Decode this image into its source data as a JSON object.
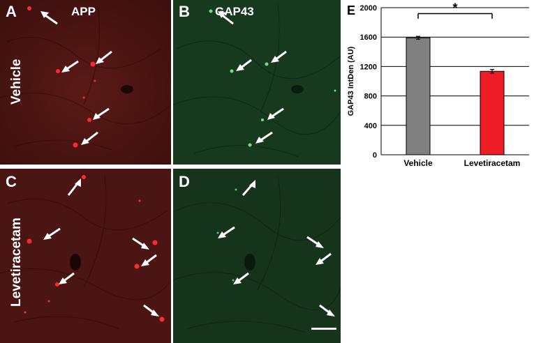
{
  "panels": {
    "a": {
      "letter": "A",
      "title": "APP"
    },
    "b": {
      "letter": "B",
      "title": "GAP43"
    },
    "c": {
      "letter": "C"
    },
    "d": {
      "letter": "D"
    },
    "e": {
      "letter": "E"
    }
  },
  "rows": {
    "top": "Vehicle",
    "bottom": "Levetiracetam"
  },
  "colors": {
    "app_bg": "#4a1512",
    "app_signal": "#ff2a2a",
    "gap_bg": "#16341c",
    "gap_signal": "#7dff8f",
    "vehicle_bar": "#808080",
    "lev_bar": "#ee1c25"
  },
  "chart_data": {
    "type": "bar",
    "categories": [
      "Vehicle",
      "Levetiracetam"
    ],
    "values": [
      1590,
      1135
    ],
    "errors": [
      20,
      25
    ],
    "ylabel": "GAP43 IntDen (AU)",
    "ylim": [
      0,
      2000
    ],
    "yticks": [
      0,
      400,
      800,
      1200,
      1600,
      2000
    ],
    "grid": true,
    "significance": "*"
  }
}
